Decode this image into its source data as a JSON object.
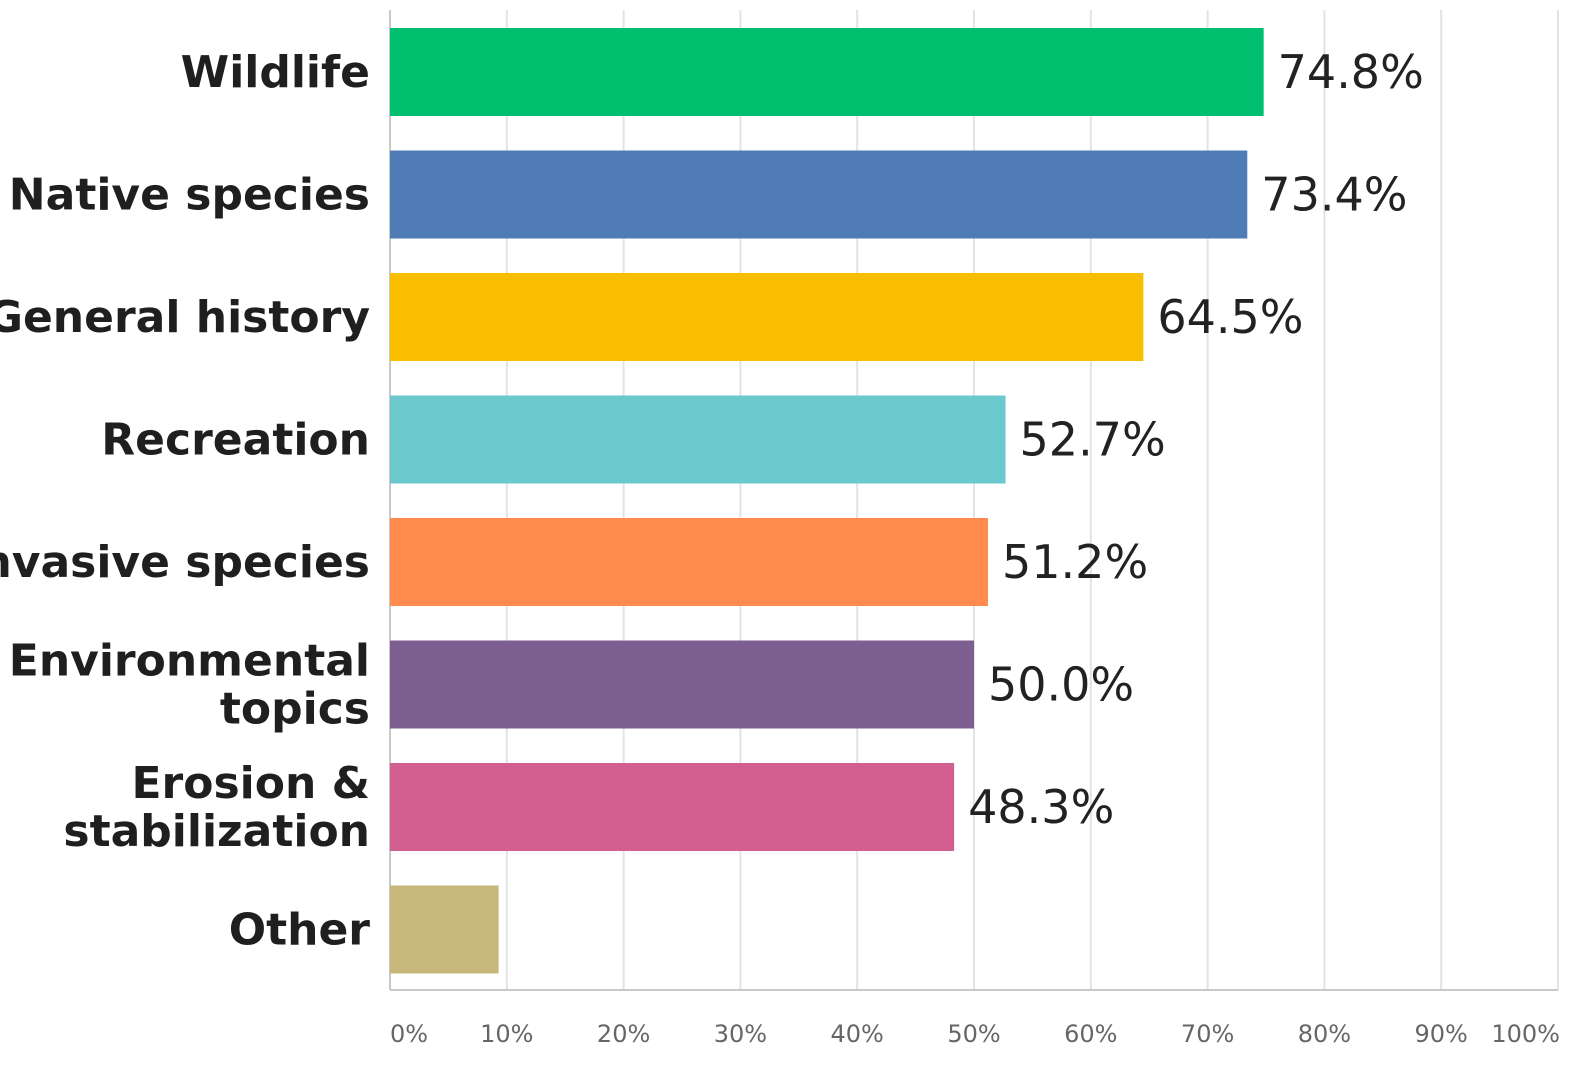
{
  "chart_data": {
    "type": "bar",
    "orientation": "horizontal",
    "categories": [
      [
        "Wildlife"
      ],
      [
        "Native species"
      ],
      [
        "General history"
      ],
      [
        "Recreation"
      ],
      [
        "Invasive species"
      ],
      [
        "Environmental",
        "topics"
      ],
      [
        "Erosion &",
        "stabilization"
      ],
      [
        "Other"
      ]
    ],
    "values": [
      74.8,
      73.4,
      64.5,
      52.7,
      51.2,
      50.0,
      48.3,
      9.3
    ],
    "value_labels": [
      "74.8%",
      "73.4%",
      "64.5%",
      "52.7%",
      "51.2%",
      "50.0%",
      "48.3%",
      ""
    ],
    "colors": [
      "#00bf6f",
      "#507cb6",
      "#f9be00",
      "#6bc8cd",
      "#ff8b4f",
      "#7d5e90",
      "#d25f90",
      "#c7b879"
    ],
    "xlim": [
      0,
      100
    ],
    "xticks": [
      0,
      10,
      20,
      30,
      40,
      50,
      60,
      70,
      80,
      90,
      100
    ],
    "xtick_labels": [
      "0%",
      "10%",
      "20%",
      "30%",
      "40%",
      "50%",
      "60%",
      "70%",
      "80%",
      "90%",
      "100%"
    ],
    "grid": true,
    "grid_color": "#e3e3e3",
    "axis_color": "#c8c8c8"
  }
}
